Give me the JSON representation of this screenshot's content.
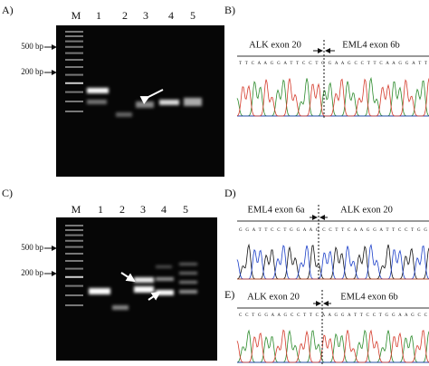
{
  "panels": [
    {
      "label": "A)",
      "lanes": [
        "M",
        "1",
        "2",
        "3",
        "4",
        "5"
      ],
      "markers": [
        "500 bp",
        "200 bp"
      ]
    },
    {
      "label": "B)",
      "segments": [
        "ALK exon 20",
        "EML4 exon 6b"
      ]
    },
    {
      "label": "C)",
      "lanes": [
        "M",
        "1",
        "2",
        "3",
        "4",
        "5"
      ],
      "markers": [
        "500 bp",
        "200 bp"
      ]
    },
    {
      "label": "D)",
      "segments": [
        "EML4 exon 6a",
        "ALK exon 20"
      ]
    },
    {
      "label": "E)",
      "segments": [
        "ALK exon 20",
        "EML4 exon 6b"
      ]
    }
  ]
}
